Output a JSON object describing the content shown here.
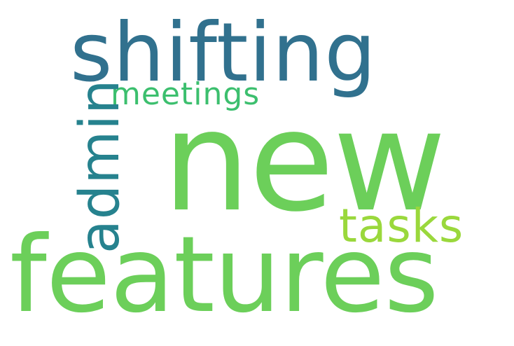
{
  "word_cloud": {
    "words": [
      {
        "text": "shifting",
        "color": "#31718e"
      },
      {
        "text": "new",
        "color": "#6ccf5a"
      },
      {
        "text": "features",
        "color": "#6ccf5a"
      },
      {
        "text": "meetings",
        "color": "#3cbf6e"
      },
      {
        "text": "tasks",
        "color": "#9ad83c"
      },
      {
        "text": "admin",
        "color": "#26828e"
      }
    ]
  }
}
